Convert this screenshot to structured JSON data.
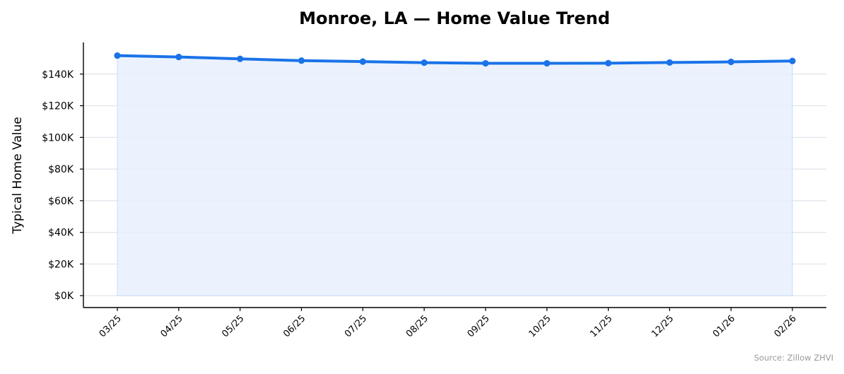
{
  "chart_data": {
    "type": "area",
    "title": "Monroe, LA — Home Value Trend",
    "xlabel": "",
    "ylabel": "Typical Home Value",
    "categories": [
      "03/25",
      "04/25",
      "05/25",
      "06/25",
      "07/25",
      "08/25",
      "09/25",
      "10/25",
      "11/25",
      "12/25",
      "01/26",
      "02/26"
    ],
    "series": [
      {
        "values": [
          151700,
          150800,
          149600,
          148500,
          147900,
          147200,
          146800,
          146800,
          146900,
          147300,
          147700,
          148300
        ]
      }
    ],
    "ylim": [
      -7500,
      160000
    ],
    "yticks": [
      0,
      20000,
      40000,
      60000,
      80000,
      100000,
      120000,
      140000
    ],
    "ytick_labels": [
      "$0K",
      "$20K",
      "$40K",
      "$60K",
      "$80K",
      "$100K",
      "$120K",
      "$140K"
    ],
    "grid": "y",
    "legend": "none",
    "colors": {
      "line": "#1a73e8",
      "fill": "#e8f0fe",
      "grid": "#dde3ea",
      "axis": "#000000"
    },
    "source_note": "Source: Zillow ZHVI"
  }
}
